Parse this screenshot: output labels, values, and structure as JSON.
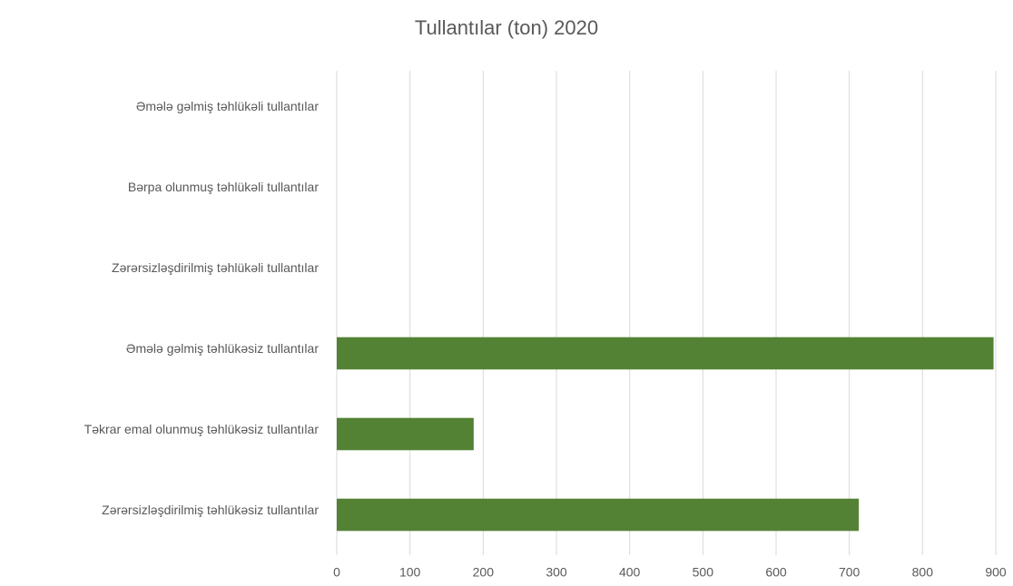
{
  "chart_data": {
    "type": "bar",
    "orientation": "horizontal",
    "title": "Tullantılar (ton) 2020",
    "categories": [
      "Əmələ gəlmiş təhlükəli tullantılar",
      "Bərpa olunmuş təhlükəli tullantılar",
      "Zərərsizləşdirilmiş təhlükəli tullantılar",
      "Əmələ gəlmiş təhlükəsiz tullantılar",
      "Təkrar emal olunmuş təhlükəsiz tullantılar",
      "Zərərsizləşdirilmiş təhlükəsiz tullantılar"
    ],
    "values": [
      0,
      0,
      0,
      897,
      187,
      713
    ],
    "color": "#548235",
    "xlim": [
      0,
      900
    ],
    "xticks": [
      0,
      100,
      200,
      300,
      400,
      500,
      600,
      700,
      800,
      900
    ],
    "grid": true
  }
}
